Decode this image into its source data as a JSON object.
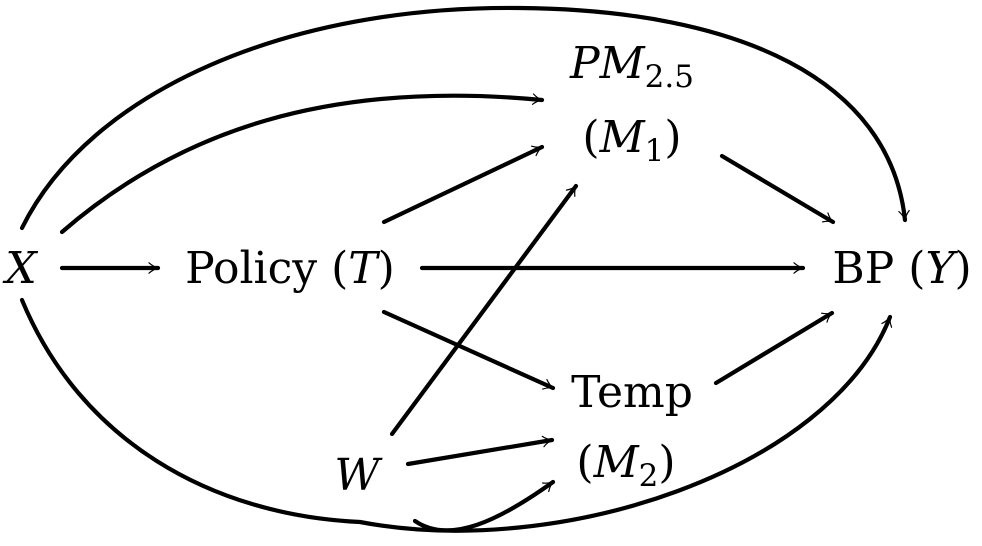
{
  "nodes": {
    "x": {
      "var": "X"
    },
    "policy": {
      "name": "Policy",
      "open": "(",
      "var": "T",
      "close": ")"
    },
    "pm": {
      "var_p": "P",
      "var_m": "M",
      "sub": "2.5",
      "open": "(",
      "mvar": "M",
      "msub": "1",
      "close": ")"
    },
    "bp": {
      "name": "BP",
      "open": "(",
      "var": "Y",
      "close": ")"
    },
    "temp": {
      "name": "Temp",
      "open": "(",
      "mvar": "M",
      "msub": "2",
      "close": ")"
    },
    "w": {
      "var": "W"
    }
  },
  "edges": [
    {
      "from": "X",
      "to": "Policy (T)"
    },
    {
      "from": "X",
      "to": "PM2.5 (M1)"
    },
    {
      "from": "X",
      "to": "BP (Y)"
    },
    {
      "from": "X",
      "to": "BP (Y)"
    },
    {
      "from": "Policy (T)",
      "to": "PM2.5 (M1)"
    },
    {
      "from": "Policy (T)",
      "to": "BP (Y)"
    },
    {
      "from": "Policy (T)",
      "to": "Temp (M2)"
    },
    {
      "from": "PM2.5 (M1)",
      "to": "BP (Y)"
    },
    {
      "from": "Temp (M2)",
      "to": "BP (Y)"
    },
    {
      "from": "W",
      "to": "PM2.5 (M1)"
    },
    {
      "from": "W",
      "to": "Temp (M2)"
    },
    {
      "from": "W",
      "to": "Temp (M2)"
    },
    {
      "from": "W",
      "to": "BP (Y)"
    }
  ]
}
